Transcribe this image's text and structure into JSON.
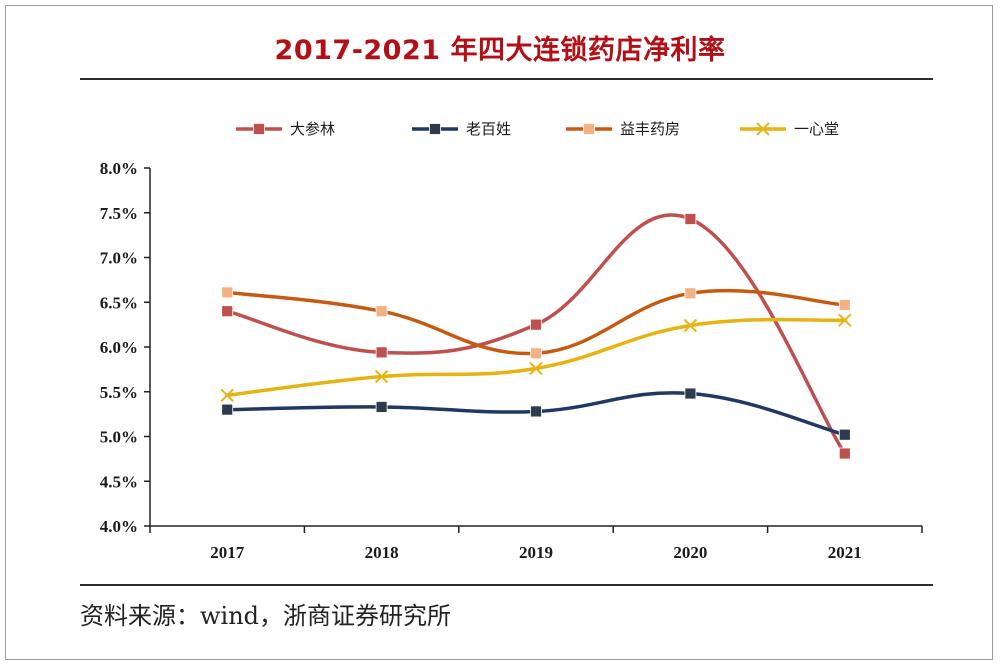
{
  "source": "资料来源：wind，浙商证券研究所",
  "chart_data": {
    "type": "line",
    "title": "2017-2021 年四大连锁药店净利率",
    "xlabel": "",
    "ylabel": "",
    "categories": [
      "2017",
      "2018",
      "2019",
      "2020",
      "2021"
    ],
    "ylim": [
      4.0,
      8.0
    ],
    "yticks": [
      "4.0%",
      "4.5%",
      "5.0%",
      "5.5%",
      "6.0%",
      "6.5%",
      "7.0%",
      "7.5%",
      "8.0%"
    ],
    "ytick_values": [
      4.0,
      4.5,
      5.0,
      5.5,
      6.0,
      6.5,
      7.0,
      7.5,
      8.0
    ],
    "grid": false,
    "legend_position": "top",
    "smooth": true,
    "series": [
      {
        "name": "大参林",
        "values": [
          6.4,
          5.94,
          6.25,
          7.43,
          4.81
        ],
        "color": "#c0504d",
        "marker": "square",
        "marker_color": "#c0504d"
      },
      {
        "name": "老百姓",
        "values": [
          5.3,
          5.33,
          5.28,
          5.48,
          5.02
        ],
        "color": "#1f3864",
        "marker": "square",
        "marker_color": "#2e3b4e"
      },
      {
        "name": "益丰药房",
        "values": [
          6.61,
          6.4,
          5.93,
          6.6,
          6.47
        ],
        "color": "#c55a11",
        "marker": "square",
        "marker_color": "#f4b183"
      },
      {
        "name": "一心堂",
        "values": [
          5.46,
          5.67,
          5.76,
          6.24,
          6.3
        ],
        "color": "#e6b311",
        "marker": "x",
        "marker_color": "#e6b311"
      }
    ]
  }
}
